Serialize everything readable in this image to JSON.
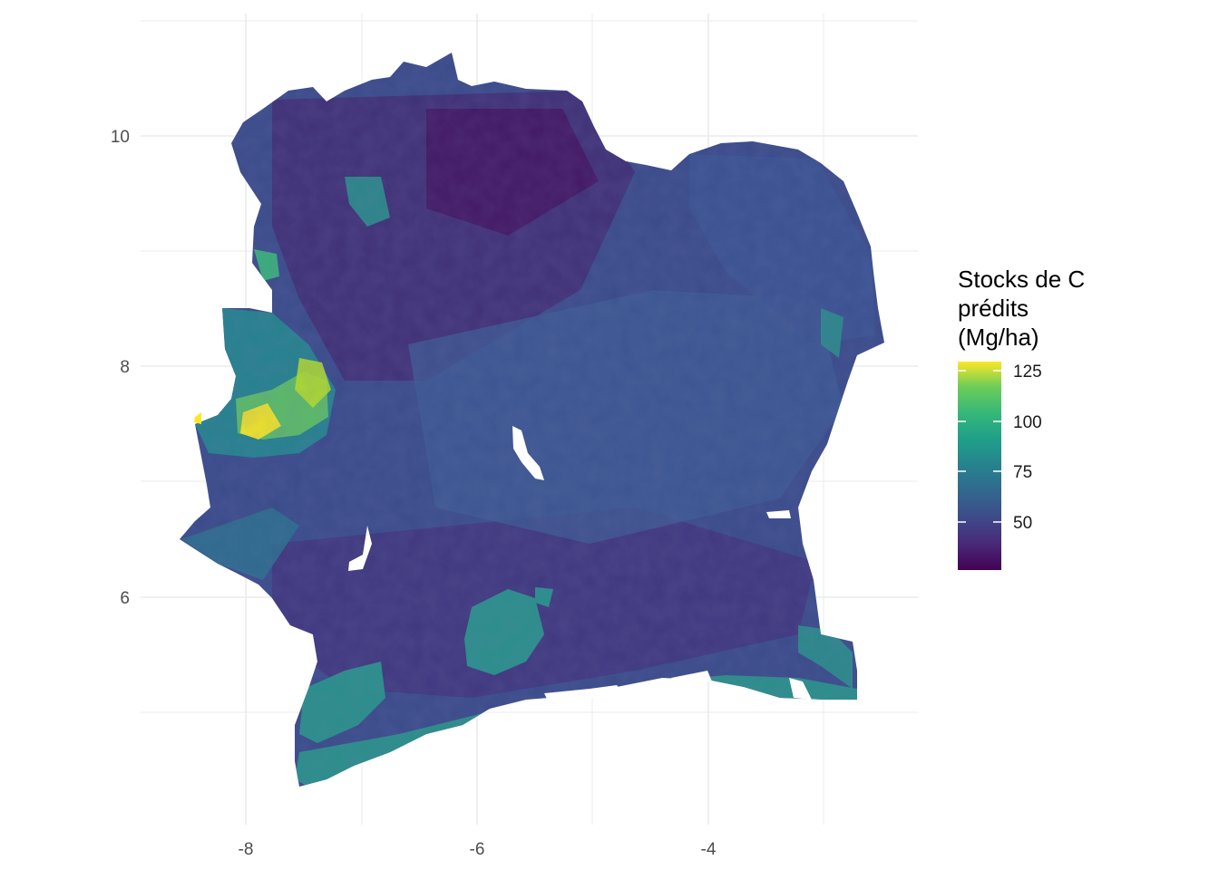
{
  "map": {
    "x_ticks": [
      "-8",
      "-6",
      "-4"
    ],
    "y_ticks": [
      "10",
      "8",
      "6"
    ],
    "grid": true,
    "theme": "minimal",
    "nodata_color": "#ffffff"
  },
  "legend": {
    "title": "Stocks de C\nprédits\n(Mg/ha)",
    "labels": [
      "125",
      "100",
      "75",
      "50"
    ],
    "colors": [
      "#440154",
      "#3b528b",
      "#21908c",
      "#5dc963",
      "#fde725"
    ],
    "placement": "right"
  },
  "colors": {
    "low": "#440154",
    "mid_low": "#3e4a89",
    "mid": "#26828e",
    "high": "#35b779",
    "max": "#fde725"
  }
}
